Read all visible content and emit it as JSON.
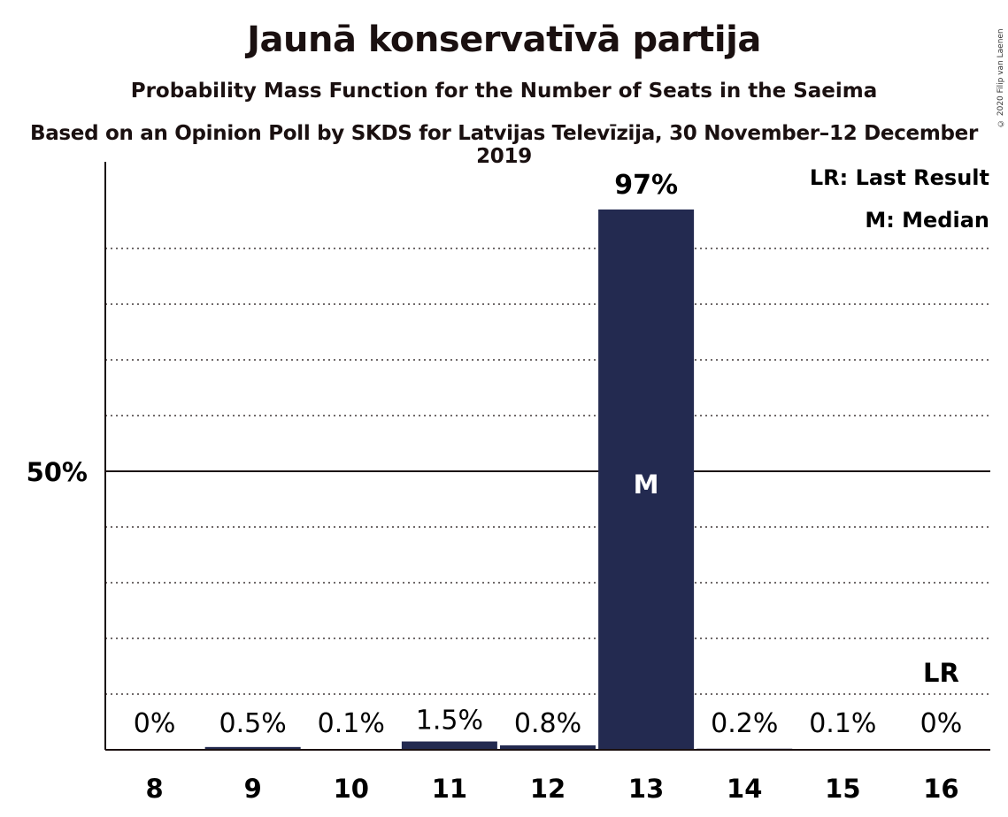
{
  "chart_data": {
    "type": "bar",
    "title": "Jaunā konservatīvā partija",
    "subtitle": "Probability Mass Function for the Number of Seats in the Saeima",
    "subtitle2": "Based on an Opinion Poll by SKDS for Latvijas Televīzija, 30 November–12 December 2019",
    "copyright": "© 2020 Filip van Laenen",
    "categories": [
      "8",
      "9",
      "10",
      "11",
      "12",
      "13",
      "14",
      "15",
      "16"
    ],
    "values": [
      0,
      0.5,
      0.1,
      1.5,
      0.8,
      97,
      0.2,
      0.1,
      0
    ],
    "value_labels": [
      "0%",
      "0.5%",
      "0.1%",
      "1.5%",
      "0.8%",
      "97%",
      "0.2%",
      "0.1%",
      "0%"
    ],
    "ylim": [
      0,
      105
    ],
    "ytick_labels": [
      {
        "value": 50,
        "label": "50%"
      }
    ],
    "median_category": "13",
    "median_marker": "M",
    "last_result_category": "16",
    "last_result_marker": "LR",
    "legend": [
      "LR: Last Result",
      "M: Median"
    ],
    "bar_color": "#232a50",
    "grid": "dotted"
  }
}
